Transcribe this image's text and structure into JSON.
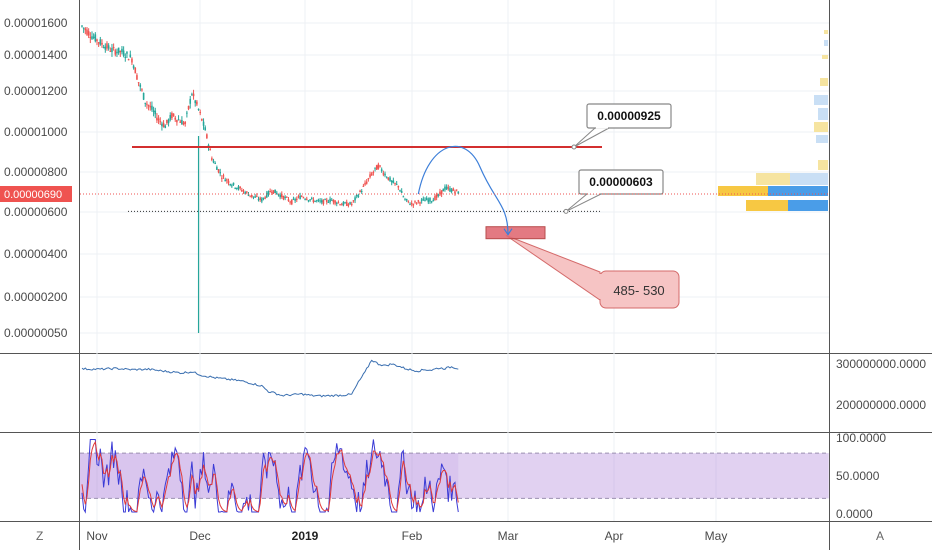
{
  "chart_data": {
    "type": "candlestick",
    "price_axis": {
      "ticks": [
        "0.00001600",
        "0.00001400",
        "0.00001200",
        "0.00001000",
        "0.00000800",
        "0.00000600",
        "0.00000400",
        "0.00000200",
        "0.00000050"
      ],
      "current_price_label": "0.00000690"
    },
    "time_axis": {
      "ticks": [
        "Nov",
        "Dec",
        "2019",
        "Feb",
        "Mar",
        "Apr",
        "May"
      ],
      "bold_tick": "2019"
    },
    "price_series": [
      [
        0,
        1.58e-05
      ],
      [
        3,
        1.52e-05
      ],
      [
        6,
        1.47e-05
      ],
      [
        9,
        1.43e-05
      ],
      [
        12,
        1.42e-05
      ],
      [
        15,
        1.38e-05
      ],
      [
        17,
        1.25e-05
      ],
      [
        19,
        1.15e-05
      ],
      [
        21,
        1.11e-05
      ],
      [
        23,
        1.06e-05
      ],
      [
        25,
        1.03e-05
      ],
      [
        27,
        1.08e-05
      ],
      [
        29,
        1.06e-05
      ],
      [
        31,
        1.04e-05
      ],
      [
        33,
        1.19e-05
      ],
      [
        35,
        1.11e-05
      ],
      [
        37,
        1.01e-05
      ],
      [
        39,
        8.7e-06
      ],
      [
        42,
        7.8e-06
      ],
      [
        45,
        7.4e-06
      ],
      [
        48,
        7.1e-06
      ],
      [
        51,
        6.8e-06
      ],
      [
        54,
        6.6e-06
      ],
      [
        57,
        7.1e-06
      ],
      [
        60,
        6.8e-06
      ],
      [
        63,
        6.5e-06
      ],
      [
        66,
        6.8e-06
      ],
      [
        69,
        6.6e-06
      ],
      [
        72,
        6.5e-06
      ],
      [
        75,
        6.6e-06
      ],
      [
        78,
        6.4e-06
      ],
      [
        81,
        6.4e-06
      ],
      [
        84,
        7.1e-06
      ],
      [
        87,
        7.9e-06
      ],
      [
        89,
        8.3e-06
      ],
      [
        91,
        7.9e-06
      ],
      [
        93,
        7.5e-06
      ],
      [
        95,
        7.3e-06
      ],
      [
        97,
        6.6e-06
      ],
      [
        99,
        6.4e-06
      ],
      [
        101,
        6.5e-06
      ],
      [
        103,
        6.6e-06
      ],
      [
        105,
        6.6e-06
      ],
      [
        107,
        6.8e-06
      ],
      [
        109,
        7.2e-06
      ],
      [
        111,
        7.1e-06
      ],
      [
        113,
        7e-06
      ]
    ],
    "spike_low": 5e-07,
    "horizontal_levels": [
      {
        "label": "0.00000925",
        "value": 9.25e-06,
        "color": "#d32f2f",
        "style": "solid"
      },
      {
        "label": "0.00000603",
        "value": 6.03e-06,
        "color": "#333333",
        "style": "dotted"
      }
    ],
    "target_zone": {
      "label": "485- 530",
      "low": 4.85e-06,
      "high": 5.3e-06
    },
    "projection": {
      "from_price": 6.9e-06,
      "peak_price": 9e-06,
      "to_price": 5e-06
    },
    "indicator1": {
      "ticks": [
        "300000000.0000",
        "200000000.0000"
      ],
      "series": [
        [
          0,
          288
        ],
        [
          5,
          287
        ],
        [
          10,
          289
        ],
        [
          15,
          286
        ],
        [
          20,
          287
        ],
        [
          25,
          282
        ],
        [
          30,
          278
        ],
        [
          33,
          281
        ],
        [
          36,
          272
        ],
        [
          40,
          266
        ],
        [
          44,
          262
        ],
        [
          48,
          258
        ],
        [
          51,
          252
        ],
        [
          54,
          246
        ],
        [
          56,
          232
        ],
        [
          58,
          228
        ],
        [
          60,
          222
        ],
        [
          63,
          224
        ],
        [
          66,
          226
        ],
        [
          69,
          222
        ],
        [
          72,
          221
        ],
        [
          75,
          222
        ],
        [
          78,
          223
        ],
        [
          81,
          225
        ],
        [
          83,
          255
        ],
        [
          85,
          280
        ],
        [
          87,
          310
        ],
        [
          89,
          300
        ],
        [
          91,
          296
        ],
        [
          93,
          300
        ],
        [
          95,
          295
        ],
        [
          97,
          289
        ],
        [
          99,
          285
        ],
        [
          101,
          283
        ],
        [
          103,
          286
        ],
        [
          105,
          285
        ],
        [
          107,
          290
        ],
        [
          109,
          289
        ],
        [
          111,
          293
        ],
        [
          113,
          289
        ]
      ]
    },
    "indicator2": {
      "ticks": [
        "100.0000",
        "50.0000",
        "0.0000"
      ],
      "band_upper": 80,
      "band_lower": 20
    },
    "bottom_left_letter": "Z",
    "bottom_right_letter": "A",
    "callouts": [
      "0.00000925",
      "0.00000603"
    ],
    "note": "485- 530"
  }
}
